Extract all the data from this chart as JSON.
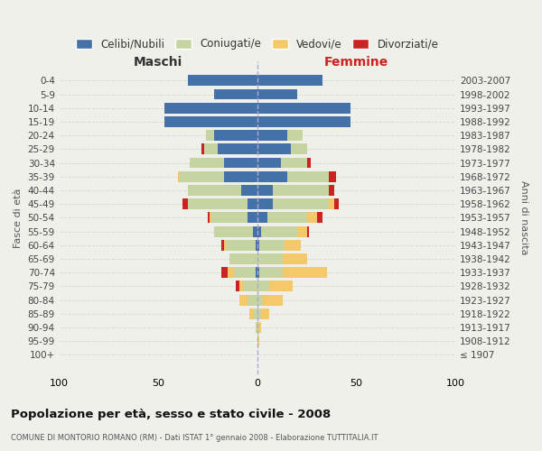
{
  "age_groups": [
    "0-4",
    "5-9",
    "10-14",
    "15-19",
    "20-24",
    "25-29",
    "30-34",
    "35-39",
    "40-44",
    "45-49",
    "50-54",
    "55-59",
    "60-64",
    "65-69",
    "70-74",
    "75-79",
    "80-84",
    "85-89",
    "90-94",
    "95-99",
    "100+"
  ],
  "birth_years": [
    "2003-2007",
    "1998-2002",
    "1993-1997",
    "1988-1992",
    "1983-1987",
    "1978-1982",
    "1973-1977",
    "1968-1972",
    "1963-1967",
    "1958-1962",
    "1953-1957",
    "1948-1952",
    "1943-1947",
    "1938-1942",
    "1933-1937",
    "1928-1932",
    "1923-1927",
    "1918-1922",
    "1913-1917",
    "1908-1912",
    "≤ 1907"
  ],
  "males": {
    "celibi": [
      35,
      22,
      47,
      47,
      22,
      20,
      17,
      17,
      8,
      5,
      5,
      2,
      1,
      0,
      1,
      0,
      0,
      0,
      0,
      0,
      0
    ],
    "coniugati": [
      0,
      0,
      0,
      0,
      4,
      7,
      17,
      22,
      27,
      30,
      18,
      20,
      15,
      14,
      11,
      7,
      5,
      2,
      1,
      0,
      0
    ],
    "vedovi": [
      0,
      0,
      0,
      0,
      0,
      0,
      0,
      1,
      0,
      0,
      1,
      0,
      1,
      0,
      3,
      2,
      4,
      2,
      0,
      0,
      0
    ],
    "divorziati": [
      0,
      0,
      0,
      0,
      0,
      1,
      0,
      0,
      0,
      3,
      1,
      0,
      1,
      0,
      3,
      2,
      0,
      0,
      0,
      0,
      0
    ]
  },
  "females": {
    "nubili": [
      33,
      20,
      47,
      47,
      15,
      17,
      12,
      15,
      8,
      8,
      5,
      2,
      1,
      0,
      1,
      0,
      0,
      0,
      0,
      0,
      0
    ],
    "coniugate": [
      0,
      0,
      0,
      0,
      8,
      8,
      13,
      21,
      28,
      28,
      20,
      18,
      13,
      13,
      12,
      6,
      3,
      2,
      0,
      0,
      0
    ],
    "vedove": [
      0,
      0,
      0,
      0,
      0,
      0,
      0,
      0,
      0,
      3,
      5,
      5,
      8,
      12,
      22,
      12,
      10,
      4,
      2,
      1,
      0
    ],
    "divorziate": [
      0,
      0,
      0,
      0,
      0,
      0,
      2,
      4,
      3,
      2,
      3,
      1,
      0,
      0,
      0,
      0,
      0,
      0,
      0,
      0,
      0
    ]
  },
  "colors": {
    "celibi": "#4472a8",
    "coniugati": "#c5d4a0",
    "vedovi": "#f5c96a",
    "divorziati": "#cc2222"
  },
  "title": "Popolazione per età, sesso e stato civile - 2008",
  "subtitle": "COMUNE DI MONTORIO ROMANO (RM) - Dati ISTAT 1° gennaio 2008 - Elaborazione TUTTITALIA.IT",
  "xlabel_left": "Maschi",
  "xlabel_right": "Femmine",
  "ylabel_left": "Fasce di età",
  "ylabel_right": "Anni di nascita",
  "xlim": 100,
  "bg_color": "#f0f0eb",
  "plot_bg": "#f0f0eb",
  "legend_labels": [
    "Celibi/Nubili",
    "Coniugati/e",
    "Vedovi/e",
    "Divorziati/e"
  ]
}
